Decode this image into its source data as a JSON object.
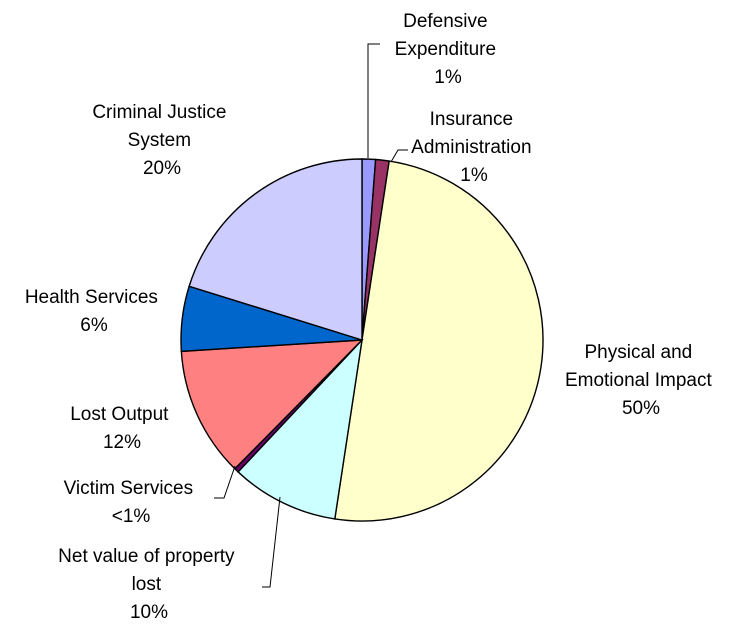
{
  "chart_data": {
    "type": "pie",
    "start_angle": "12 o'clock",
    "direction": "clockwise",
    "slices": [
      {
        "label": "Defensive Expenditure",
        "value_label": "1%",
        "value": 1.2,
        "color": "#9999ff"
      },
      {
        "label": "Insurance Administration",
        "value_label": "1%",
        "value": 1.2,
        "color": "#993366"
      },
      {
        "label": "Physical and Emotional Impact",
        "value_label": "50%",
        "value": 50.0,
        "color": "#ffffcc"
      },
      {
        "label": "Net value of property lost",
        "value_label": "10%",
        "value": 9.6,
        "color": "#ccffff"
      },
      {
        "label": "Victim Services",
        "value_label": "<1%",
        "value": 0.4,
        "color": "#660066"
      },
      {
        "label": "Lost Output",
        "value_label": "12%",
        "value": 11.6,
        "color": "#ff8080"
      },
      {
        "label": "Health Services",
        "value_label": "6%",
        "value": 5.8,
        "color": "#0066cc"
      },
      {
        "label": "Criminal Justice System",
        "value_label": "20%",
        "value": 20.2,
        "color": "#ccccff"
      }
    ],
    "label_lines": [
      [
        "Defensive",
        "Expenditure",
        "1%"
      ],
      [
        "Insurance",
        "Administration",
        "1%"
      ],
      [
        "Physical and",
        "Emotional Impact",
        "50%"
      ],
      [
        "Net value of property",
        "lost",
        "10%"
      ],
      [
        "Victim Services",
        "<1%"
      ],
      [
        "Lost Output",
        "12%"
      ],
      [
        "Health Services",
        "6%"
      ],
      [
        "Criminal Justice",
        "System",
        "20%"
      ]
    ]
  }
}
